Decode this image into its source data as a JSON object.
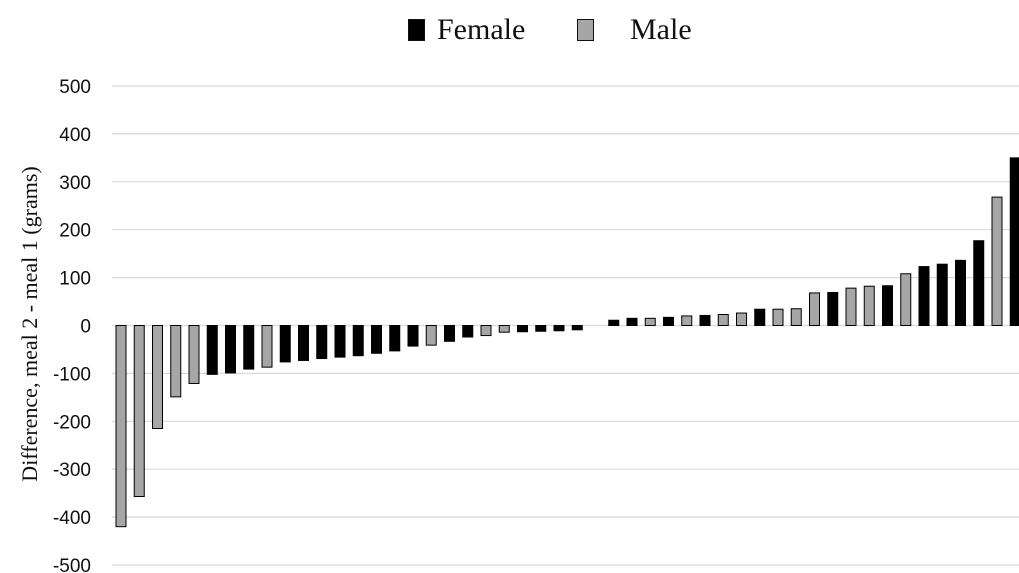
{
  "chart_data": {
    "type": "bar",
    "title": "",
    "xlabel": "",
    "ylabel": "Difference, meal 2 - meal 1 (grams)",
    "ylim": [
      -500,
      500
    ],
    "yticks": [
      500,
      400,
      300,
      200,
      100,
      0,
      -100,
      -200,
      -300,
      -400,
      -500
    ],
    "grid": true,
    "legend": {
      "placement": "top"
    },
    "series": [
      {
        "name": "Female",
        "color": "#000000"
      },
      {
        "name": "Male",
        "color": "#a6a6a6"
      }
    ],
    "bars": [
      {
        "value": -420,
        "group": "Male"
      },
      {
        "value": -357,
        "group": "Male"
      },
      {
        "value": -215,
        "group": "Male"
      },
      {
        "value": -149,
        "group": "Male"
      },
      {
        "value": -121,
        "group": "Male"
      },
      {
        "value": -102,
        "group": "Female"
      },
      {
        "value": -99,
        "group": "Female"
      },
      {
        "value": -91,
        "group": "Female"
      },
      {
        "value": -87,
        "group": "Male"
      },
      {
        "value": -76,
        "group": "Female"
      },
      {
        "value": -73,
        "group": "Female"
      },
      {
        "value": -69,
        "group": "Female"
      },
      {
        "value": -66,
        "group": "Female"
      },
      {
        "value": -63,
        "group": "Female"
      },
      {
        "value": -58,
        "group": "Female"
      },
      {
        "value": -53,
        "group": "Female"
      },
      {
        "value": -43,
        "group": "Female"
      },
      {
        "value": -41,
        "group": "Male"
      },
      {
        "value": -33,
        "group": "Female"
      },
      {
        "value": -24,
        "group": "Female"
      },
      {
        "value": -21,
        "group": "Male"
      },
      {
        "value": -14,
        "group": "Male"
      },
      {
        "value": -13,
        "group": "Female"
      },
      {
        "value": -12,
        "group": "Female"
      },
      {
        "value": -11,
        "group": "Female"
      },
      {
        "value": -9,
        "group": "Female"
      },
      {
        "value": 0,
        "group": "Female"
      },
      {
        "value": 11,
        "group": "Female"
      },
      {
        "value": 15,
        "group": "Female"
      },
      {
        "value": 15,
        "group": "Male"
      },
      {
        "value": 17,
        "group": "Female"
      },
      {
        "value": 20,
        "group": "Male"
      },
      {
        "value": 21,
        "group": "Female"
      },
      {
        "value": 23,
        "group": "Male"
      },
      {
        "value": 26,
        "group": "Male"
      },
      {
        "value": 34,
        "group": "Female"
      },
      {
        "value": 34,
        "group": "Male"
      },
      {
        "value": 35,
        "group": "Male"
      },
      {
        "value": 68,
        "group": "Male"
      },
      {
        "value": 69,
        "group": "Female"
      },
      {
        "value": 78,
        "group": "Male"
      },
      {
        "value": 82,
        "group": "Male"
      },
      {
        "value": 83,
        "group": "Female"
      },
      {
        "value": 108,
        "group": "Male"
      },
      {
        "value": 123,
        "group": "Female"
      },
      {
        "value": 128,
        "group": "Female"
      },
      {
        "value": 136,
        "group": "Female"
      },
      {
        "value": 177,
        "group": "Female"
      },
      {
        "value": 268,
        "group": "Male"
      },
      {
        "value": 350,
        "group": "Female"
      }
    ]
  }
}
